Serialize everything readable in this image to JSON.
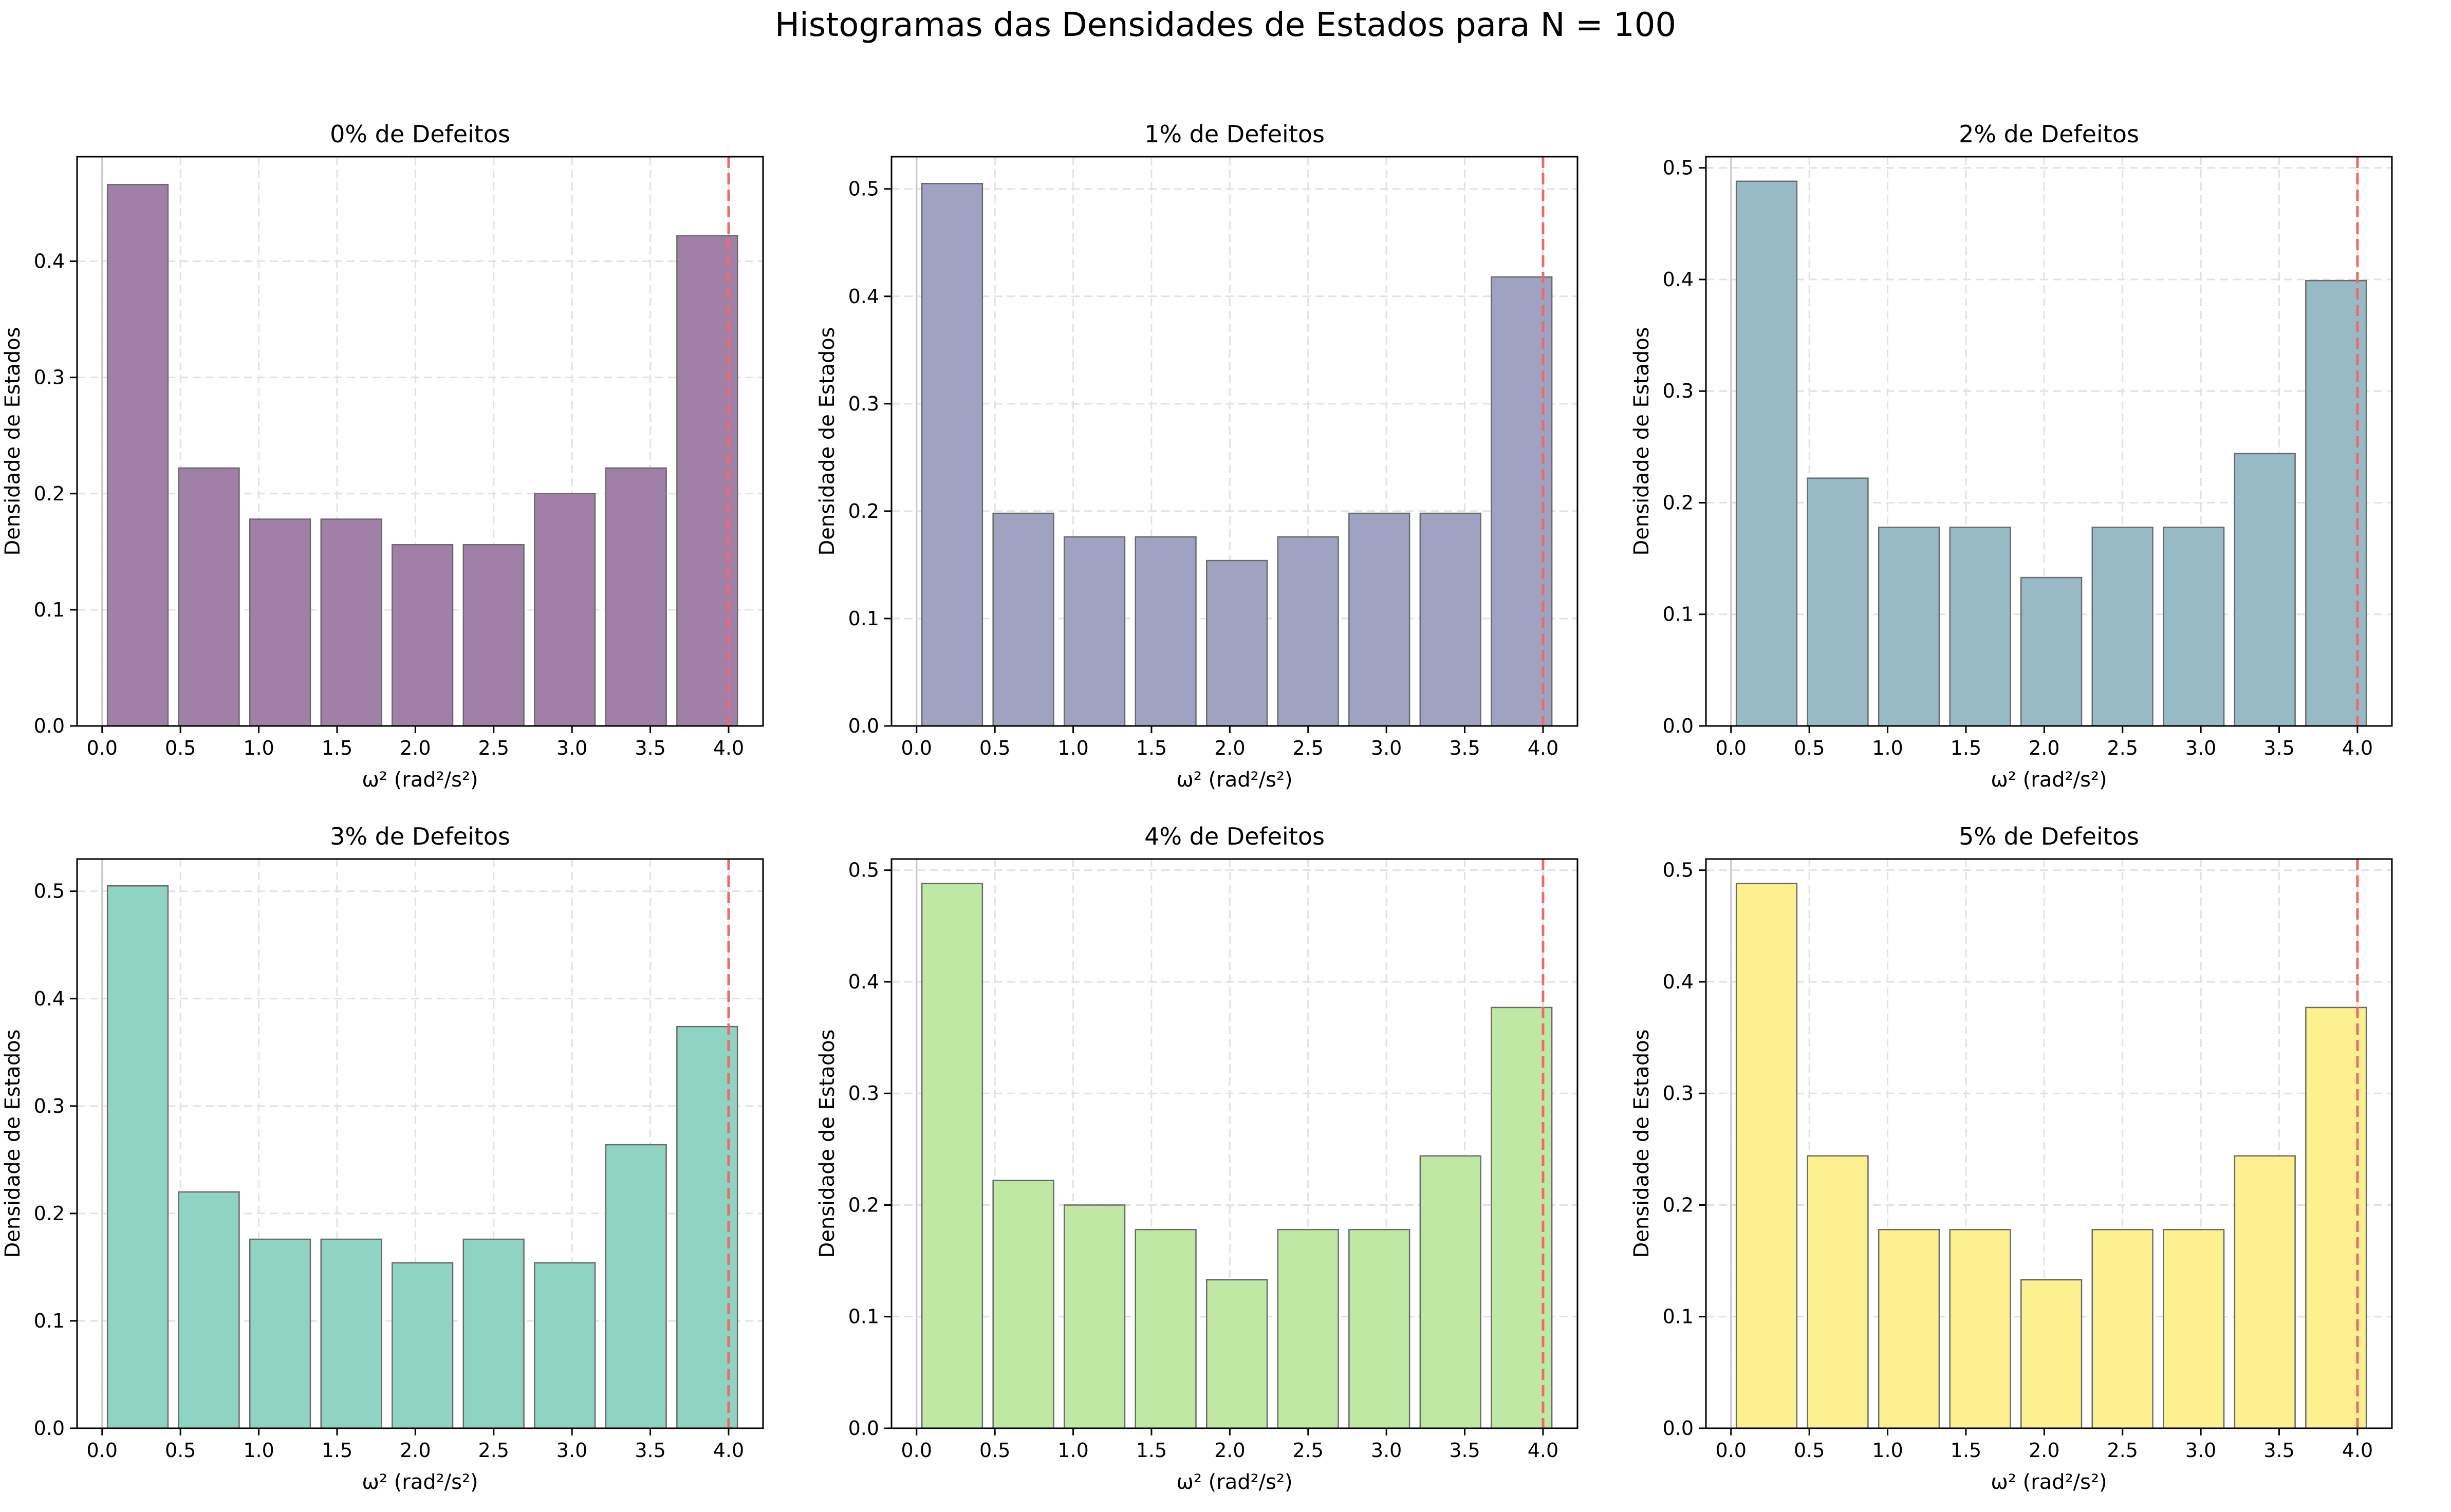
{
  "figure": {
    "title": "Histogramas das Densidades de Estados para N = 100"
  },
  "chart_data": [
    {
      "type": "bar",
      "title": "0% de Defeitos",
      "xlabel": "ω² (rad²/s²)",
      "ylabel": "Densidade de Estados",
      "xlim": [
        -0.16,
        4.22
      ],
      "ylim": [
        0,
        0.49
      ],
      "xticks": [
        "0.0",
        "0.5",
        "1.0",
        "1.5",
        "2.0",
        "2.5",
        "3.0",
        "3.5",
        "4.0"
      ],
      "yticks": [
        "0.0",
        "0.1",
        "0.2",
        "0.3",
        "0.4"
      ],
      "bin_start": 0.0,
      "bin_width": 0.4545,
      "values": [
        0.466,
        0.222,
        0.178,
        0.178,
        0.156,
        0.156,
        0.2,
        0.222,
        0.422
      ],
      "color": "#a180a7",
      "vline_x": 4.0,
      "vline_color": "#ee6a6a",
      "grid": true
    },
    {
      "type": "bar",
      "title": "1% de Defeitos",
      "xlabel": "ω² (rad²/s²)",
      "ylabel": "Densidade de Estados",
      "xlim": [
        -0.16,
        4.22
      ],
      "ylim": [
        0,
        0.53
      ],
      "xticks": [
        "0.0",
        "0.5",
        "1.0",
        "1.5",
        "2.0",
        "2.5",
        "3.0",
        "3.5",
        "4.0"
      ],
      "yticks": [
        "0.0",
        "0.1",
        "0.2",
        "0.3",
        "0.4",
        "0.5"
      ],
      "bin_start": 0.0,
      "bin_width": 0.4545,
      "values": [
        0.505,
        0.198,
        0.176,
        0.176,
        0.154,
        0.176,
        0.198,
        0.198,
        0.418
      ],
      "color": "#9fa2c1",
      "vline_x": 4.0,
      "vline_color": "#ee6a6a",
      "grid": true
    },
    {
      "type": "bar",
      "title": "2% de Defeitos",
      "xlabel": "ω² (rad²/s²)",
      "ylabel": "Densidade de Estados",
      "xlim": [
        -0.16,
        4.22
      ],
      "ylim": [
        0,
        0.51
      ],
      "xticks": [
        "0.0",
        "0.5",
        "1.0",
        "1.5",
        "2.0",
        "2.5",
        "3.0",
        "3.5",
        "4.0"
      ],
      "yticks": [
        "0.0",
        "0.1",
        "0.2",
        "0.3",
        "0.4",
        "0.5"
      ],
      "bin_start": 0.0,
      "bin_width": 0.4545,
      "values": [
        0.488,
        0.222,
        0.178,
        0.178,
        0.133,
        0.178,
        0.178,
        0.244,
        0.399
      ],
      "color": "#97bac6",
      "vline_x": 4.0,
      "vline_color": "#ee6a6a",
      "grid": true
    },
    {
      "type": "bar",
      "title": "3% de Defeitos",
      "xlabel": "ω² (rad²/s²)",
      "ylabel": "Densidade de Estados",
      "xlim": [
        -0.16,
        4.22
      ],
      "ylim": [
        0,
        0.53
      ],
      "xticks": [
        "0.0",
        "0.5",
        "1.0",
        "1.5",
        "2.0",
        "2.5",
        "3.0",
        "3.5",
        "4.0"
      ],
      "yticks": [
        "0.0",
        "0.1",
        "0.2",
        "0.3",
        "0.4",
        "0.5"
      ],
      "bin_start": 0.0,
      "bin_width": 0.4545,
      "values": [
        0.505,
        0.22,
        0.176,
        0.176,
        0.154,
        0.176,
        0.154,
        0.264,
        0.374
      ],
      "color": "#8fd4c2",
      "vline_x": 4.0,
      "vline_color": "#ee6a6a",
      "grid": true
    },
    {
      "type": "bar",
      "title": "4% de Defeitos",
      "xlabel": "ω² (rad²/s²)",
      "ylabel": "Densidade de Estados",
      "xlim": [
        -0.16,
        4.22
      ],
      "ylim": [
        0,
        0.51
      ],
      "xticks": [
        "0.0",
        "0.5",
        "1.0",
        "1.5",
        "2.0",
        "2.5",
        "3.0",
        "3.5",
        "4.0"
      ],
      "yticks": [
        "0.0",
        "0.1",
        "0.2",
        "0.3",
        "0.4",
        "0.5"
      ],
      "bin_start": 0.0,
      "bin_width": 0.4545,
      "values": [
        0.488,
        0.222,
        0.2,
        0.178,
        0.133,
        0.178,
        0.178,
        0.244,
        0.377
      ],
      "color": "#bfe8a5",
      "vline_x": 4.0,
      "vline_color": "#ee6a6a",
      "grid": true
    },
    {
      "type": "bar",
      "title": "5% de Defeitos",
      "xlabel": "ω² (rad²/s²)",
      "ylabel": "Densidade de Estados",
      "xlim": [
        -0.16,
        4.22
      ],
      "ylim": [
        0,
        0.51
      ],
      "xticks": [
        "0.0",
        "0.5",
        "1.0",
        "1.5",
        "2.0",
        "2.5",
        "3.0",
        "3.5",
        "4.0"
      ],
      "yticks": [
        "0.0",
        "0.1",
        "0.2",
        "0.3",
        "0.4",
        "0.5"
      ],
      "bin_start": 0.0,
      "bin_width": 0.4545,
      "values": [
        0.488,
        0.244,
        0.178,
        0.178,
        0.133,
        0.178,
        0.178,
        0.244,
        0.377
      ],
      "color": "#fcf08f",
      "vline_x": 4.0,
      "vline_color": "#ee6a6a",
      "grid": true
    }
  ]
}
